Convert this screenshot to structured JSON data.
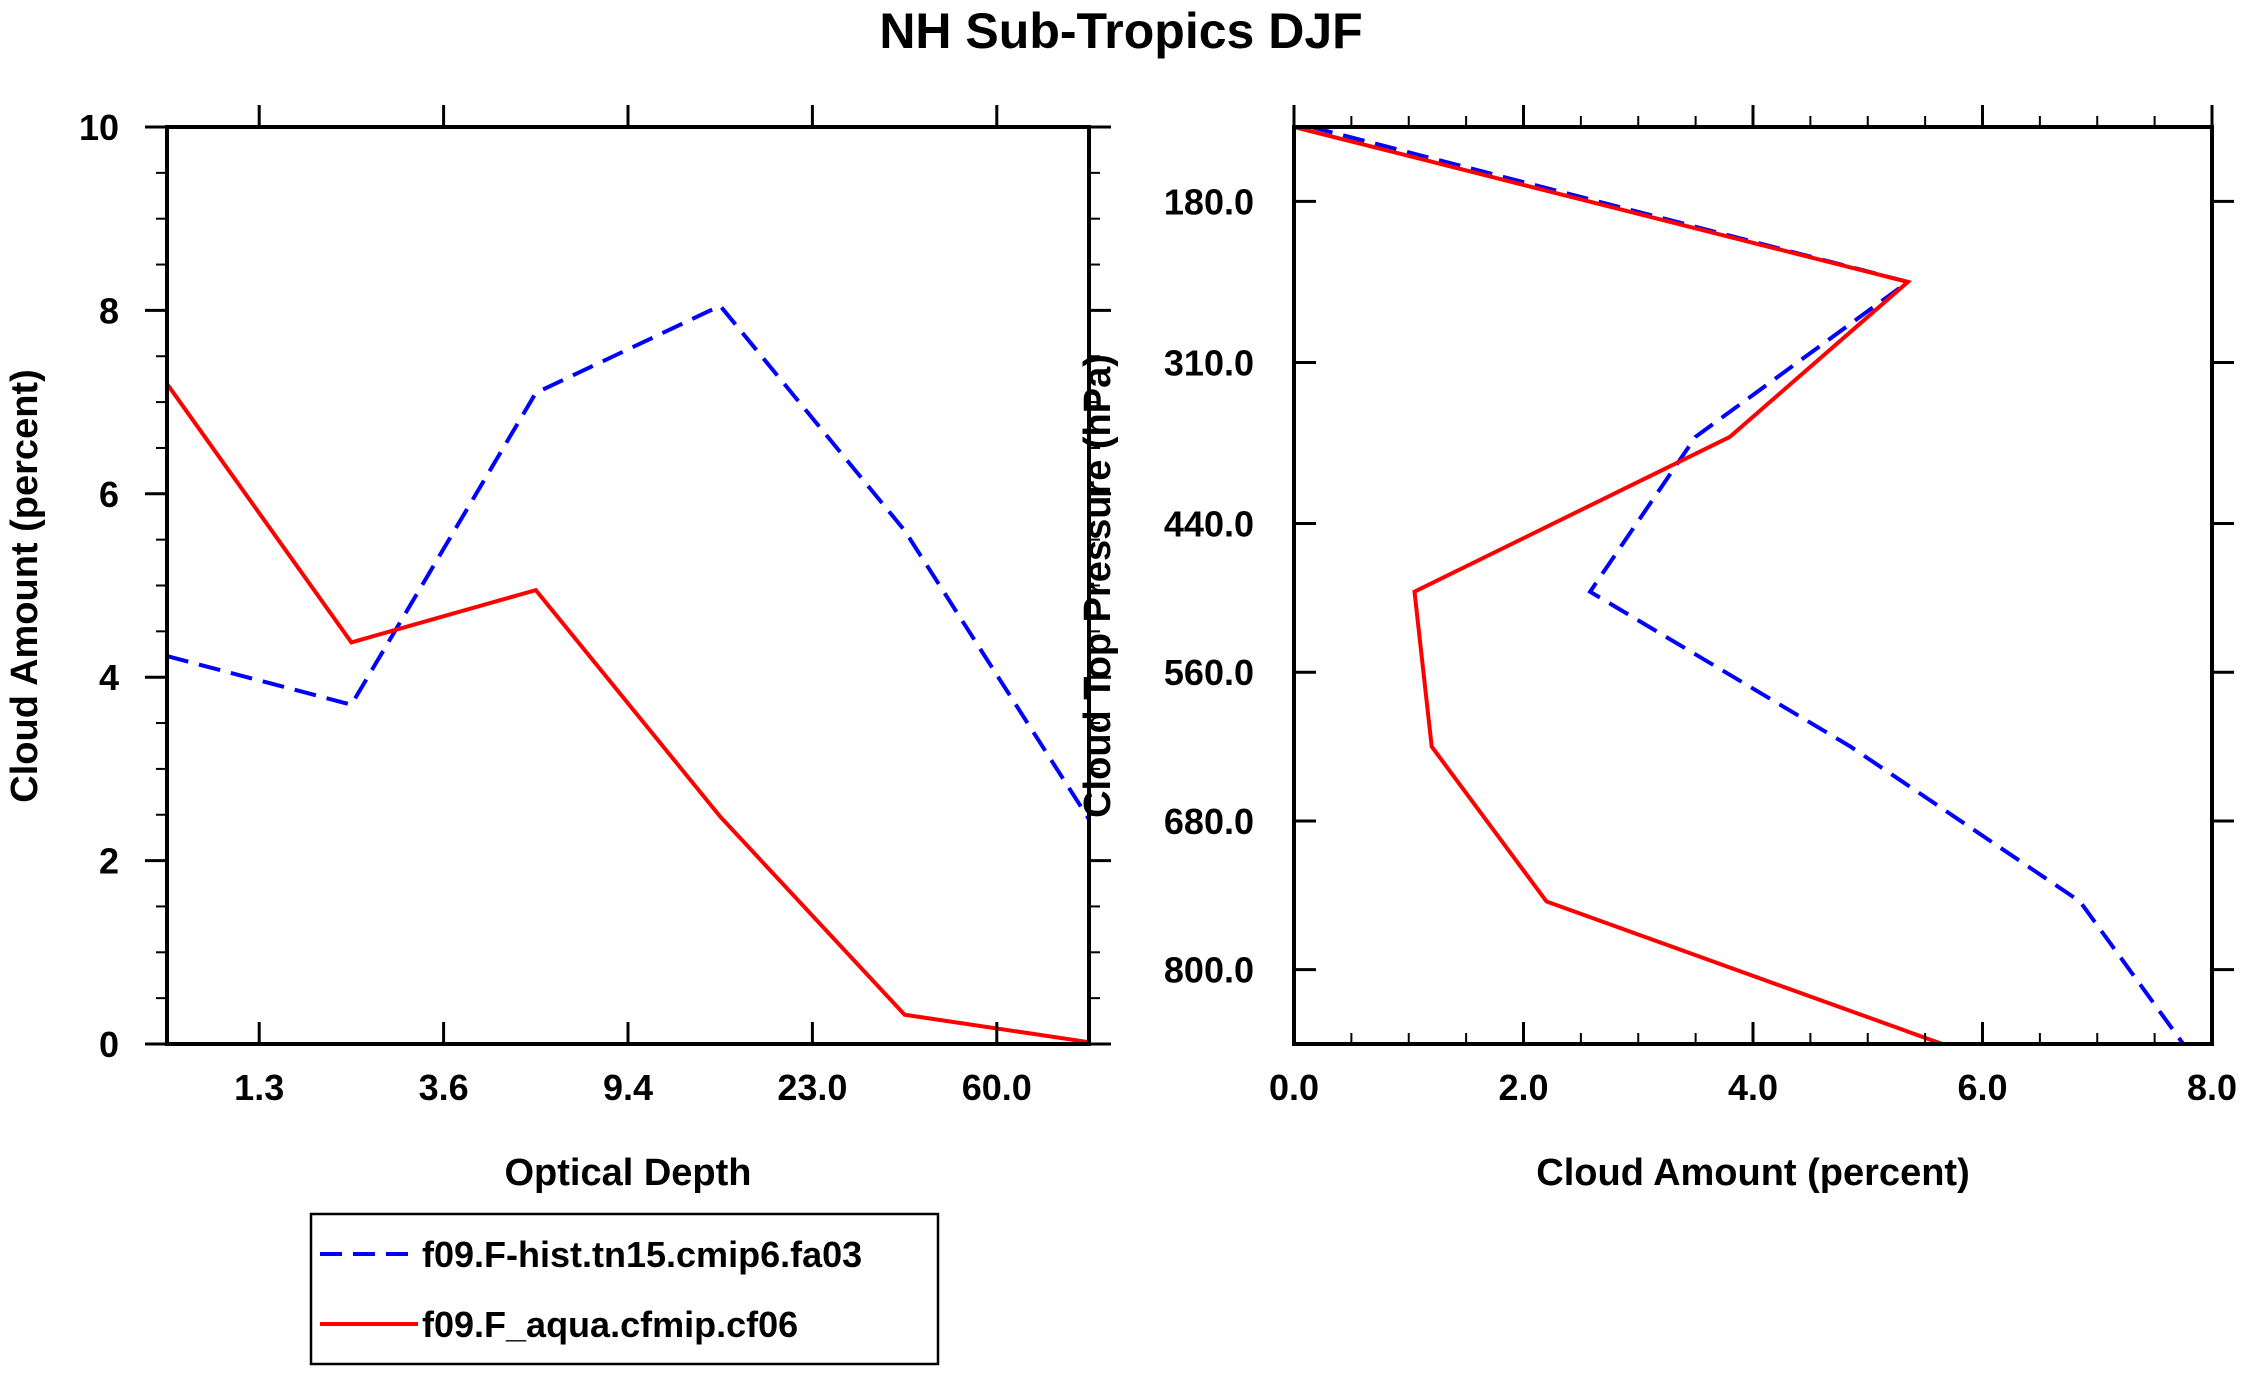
{
  "title": "NH Sub-Tropics DJF",
  "colors": {
    "series1": "#0000ff",
    "series2": "#ff0000",
    "axis": "#000000"
  },
  "legend": {
    "items": [
      {
        "label": "f09.F-hist.tn15.cmip6.fa03",
        "color": "#0000ff",
        "style": "dashed"
      },
      {
        "label": "f09.F_aqua.cfmip.cf06",
        "color": "#ff0000",
        "style": "solid"
      }
    ]
  },
  "chart_data": [
    {
      "type": "line",
      "xlabel": "Optical Depth",
      "ylabel": "Cloud Amount (percent)",
      "xlim": [
        0,
        5
      ],
      "ylim": [
        0,
        10
      ],
      "xticks": [
        {
          "value": 0.5,
          "label": "1.3"
        },
        {
          "value": 1.5,
          "label": "3.6"
        },
        {
          "value": 2.5,
          "label": "9.4"
        },
        {
          "value": 3.5,
          "label": "23.0"
        },
        {
          "value": 4.5,
          "label": "60.0"
        }
      ],
      "yticks": [
        {
          "value": 0,
          "label": "0"
        },
        {
          "value": 2,
          "label": "2"
        },
        {
          "value": 4,
          "label": "4"
        },
        {
          "value": 6,
          "label": "6"
        },
        {
          "value": 8,
          "label": "8"
        },
        {
          "value": 10,
          "label": "10"
        }
      ],
      "x": [
        0,
        1,
        2,
        3,
        4,
        5
      ],
      "series": [
        {
          "name": "f09.F-hist.tn15.cmip6.fa03",
          "values": [
            4.23,
            3.7,
            7.1,
            8.05,
            5.6,
            2.45
          ]
        },
        {
          "name": "f09.F_aqua.cfmip.cf06",
          "values": [
            7.2,
            4.38,
            4.95,
            2.48,
            0.32,
            0.02
          ]
        }
      ]
    },
    {
      "type": "line",
      "xlabel": "Cloud Amount (percent)",
      "ylabel": "Cloud Top Pressure (hPa)",
      "xlim": [
        0,
        8
      ],
      "ylim_top": 120,
      "ylim_bottom": 860,
      "xticks": [
        {
          "value": 0,
          "label": "0.0"
        },
        {
          "value": 2,
          "label": "2.0"
        },
        {
          "value": 4,
          "label": "4.0"
        },
        {
          "value": 6,
          "label": "6.0"
        },
        {
          "value": 8,
          "label": "8.0"
        }
      ],
      "yticks": [
        {
          "value": 180,
          "label": "180.0"
        },
        {
          "value": 310,
          "label": "310.0"
        },
        {
          "value": 440,
          "label": "440.0"
        },
        {
          "value": 560,
          "label": "560.0"
        },
        {
          "value": 680,
          "label": "680.0"
        },
        {
          "value": 800,
          "label": "800.0"
        }
      ],
      "pressure": [
        120,
        245,
        370,
        495,
        620,
        745,
        860
      ],
      "series": [
        {
          "name": "f09.F-hist.tn15.cmip6.fa03",
          "values": [
            0.15,
            5.35,
            3.5,
            2.58,
            4.85,
            6.85,
            7.75
          ]
        },
        {
          "name": "f09.F_aqua.cfmip.cf06",
          "values": [
            0.0,
            5.35,
            3.8,
            1.05,
            1.2,
            2.2,
            5.65
          ]
        }
      ]
    }
  ]
}
